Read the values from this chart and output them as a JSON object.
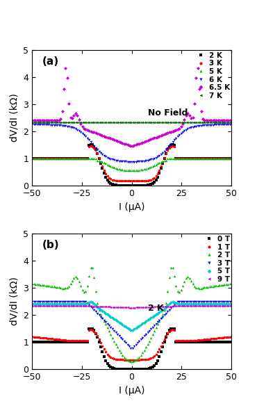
{
  "panel_a": {
    "title": "(a)",
    "annotation": "No Field",
    "xlabel": "I (μA)",
    "ylabel": "dV/dI (kΩ)",
    "xlim": [
      -50,
      50
    ],
    "ylim": [
      0,
      5
    ],
    "yticks": [
      0,
      1,
      2,
      3,
      4,
      5
    ],
    "xticks": [
      -50,
      -25,
      0,
      25,
      50
    ]
  },
  "panel_b": {
    "title": "(b)",
    "annotation": "2 K",
    "xlabel": "I (μA)",
    "ylabel": "dV/dI (kΩ)",
    "xlim": [
      -50,
      50
    ],
    "ylim": [
      0,
      5
    ],
    "yticks": [
      0,
      1,
      2,
      3,
      4,
      5
    ],
    "xticks": [
      -50,
      -25,
      0,
      25,
      50
    ]
  },
  "colors_a": {
    "2 K": "#000000",
    "3 K": "#ff0000",
    "5 K": "#00bb00",
    "6 K": "#0000ff",
    "6.5 K": "#cc00cc",
    "7 K": "#006600"
  },
  "colors_b": {
    "0 T": "#000000",
    "1 T": "#ff0000",
    "2 T": "#00bb00",
    "3 T": "#0000ff",
    "5 T": "#00cccc",
    "9 T": "#cc00cc"
  },
  "markers_a": {
    "2 K": "s",
    "3 K": "o",
    "5 K": "^",
    "6 K": "v",
    "6.5 K": "D",
    "7 K": "<"
  },
  "markers_b": {
    "0 T": "s",
    "1 T": "o",
    "2 T": "^",
    "3 T": "v",
    "5 T": "D",
    "9 T": "<"
  }
}
